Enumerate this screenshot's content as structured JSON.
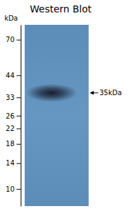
{
  "chart_data": {
    "type": "gel",
    "title": "Western Blot",
    "ylabel": "kDa",
    "values": [
      35
    ],
    "color": "#141424",
    "log": "y",
    "ylim": [
      8,
      85
    ],
    "yticks": [
      70,
      44,
      33,
      26,
      22,
      18,
      14,
      10
    ],
    "annotations": [
      {
        "label": "35kDa",
        "y": 35
      }
    ]
  }
}
